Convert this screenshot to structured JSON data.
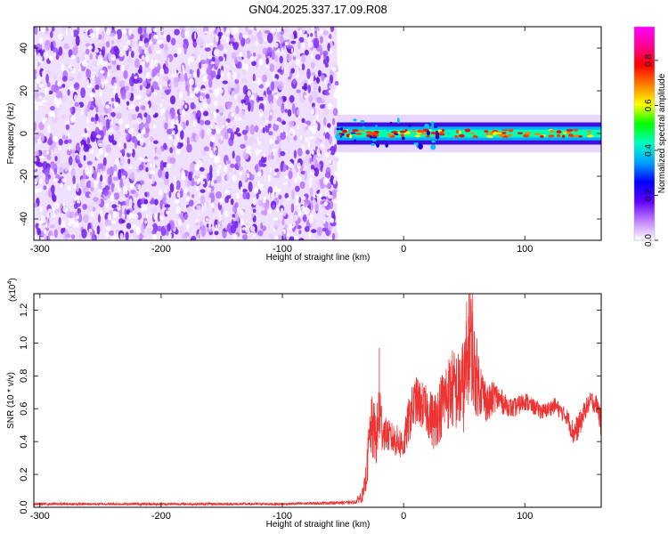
{
  "title": "GN04.2025.337.17.09.R08",
  "chart_data": [
    {
      "type": "heatmap",
      "name": "spectrogram",
      "xlabel": "Height of straight line (km)",
      "ylabel": "Frequency (Hz)",
      "xlim": [
        -305,
        163
      ],
      "ylim": [
        -50,
        50
      ],
      "x_ticks": [
        -300,
        -200,
        -100,
        0,
        100
      ],
      "y_ticks": [
        -40,
        -20,
        0,
        20,
        40
      ],
      "noise_region_x": [
        -305,
        -55
      ],
      "signal_region_x": [
        -55,
        163
      ],
      "signal_center_hz": 0,
      "signal_halfwidth_hz": 4,
      "colorbar": {
        "label": "Normalized spectral amplitude",
        "range": [
          0,
          0.95
        ],
        "ticks": [
          0.0,
          0.2,
          0.4,
          0.6,
          0.8
        ],
        "tick_labels": [
          "0.0",
          "0.2",
          "0.4",
          "0.6",
          "0.8"
        ],
        "colors": [
          "#ffffff",
          "#c080ff",
          "#6000ff",
          "#0000ff",
          "#00a0ff",
          "#00ffc0",
          "#00ff00",
          "#ffff00",
          "#ff8000",
          "#ff0000",
          "#ff0090",
          "#ff00ff"
        ]
      }
    },
    {
      "type": "line",
      "name": "snr",
      "xlabel": "Height of straight line (km)",
      "ylabel": "SNR (10 * v/v)",
      "multiplier_label": "(x10",
      "multiplier_exp": "4",
      "xlim": [
        -305,
        163
      ],
      "ylim": [
        0,
        1.3
      ],
      "x_ticks": [
        -300,
        -200,
        -100,
        0,
        100
      ],
      "y_ticks": [
        0.0,
        0.2,
        0.4,
        0.6,
        0.8,
        1.0,
        1.2
      ],
      "y_tick_labels": [
        "0.0",
        "0.2",
        "0.4",
        "0.6",
        "0.8",
        "1.0",
        "1.2"
      ],
      "color": "#ee3333",
      "series": [
        {
          "name": "SNR",
          "x": [
            -305,
            -200,
            -100,
            -40,
            -33,
            -30,
            -28,
            -26,
            -22,
            -20,
            -18,
            -15,
            -10,
            -5,
            0,
            5,
            10,
            15,
            20,
            25,
            30,
            35,
            40,
            45,
            50,
            53,
            55,
            58,
            60,
            65,
            70,
            75,
            80,
            85,
            90,
            95,
            100,
            105,
            110,
            115,
            120,
            125,
            130,
            135,
            140,
            145,
            150,
            155,
            160,
            163
          ],
          "y": [
            0.02,
            0.02,
            0.02,
            0.03,
            0.08,
            0.25,
            0.45,
            0.48,
            0.42,
            0.62,
            0.48,
            0.45,
            0.42,
            0.4,
            0.38,
            0.55,
            0.65,
            0.62,
            0.58,
            0.52,
            0.6,
            0.68,
            0.72,
            0.7,
            0.75,
            0.9,
            1.05,
            0.85,
            0.8,
            0.7,
            0.62,
            0.68,
            0.65,
            0.62,
            0.6,
            0.62,
            0.65,
            0.62,
            0.6,
            0.58,
            0.6,
            0.62,
            0.58,
            0.55,
            0.45,
            0.5,
            0.6,
            0.65,
            0.62,
            0.5
          ],
          "spread": [
            0.008,
            0.008,
            0.008,
            0.01,
            0.05,
            0.12,
            0.15,
            0.2,
            0.18,
            0.25,
            0.15,
            0.1,
            0.1,
            0.1,
            0.1,
            0.15,
            0.15,
            0.15,
            0.15,
            0.18,
            0.2,
            0.22,
            0.25,
            0.25,
            0.3,
            0.3,
            0.35,
            0.3,
            0.25,
            0.15,
            0.12,
            0.1,
            0.08,
            0.06,
            0.06,
            0.06,
            0.06,
            0.05,
            0.05,
            0.05,
            0.05,
            0.05,
            0.05,
            0.05,
            0.08,
            0.08,
            0.06,
            0.06,
            0.06,
            0.08
          ]
        }
      ]
    }
  ]
}
